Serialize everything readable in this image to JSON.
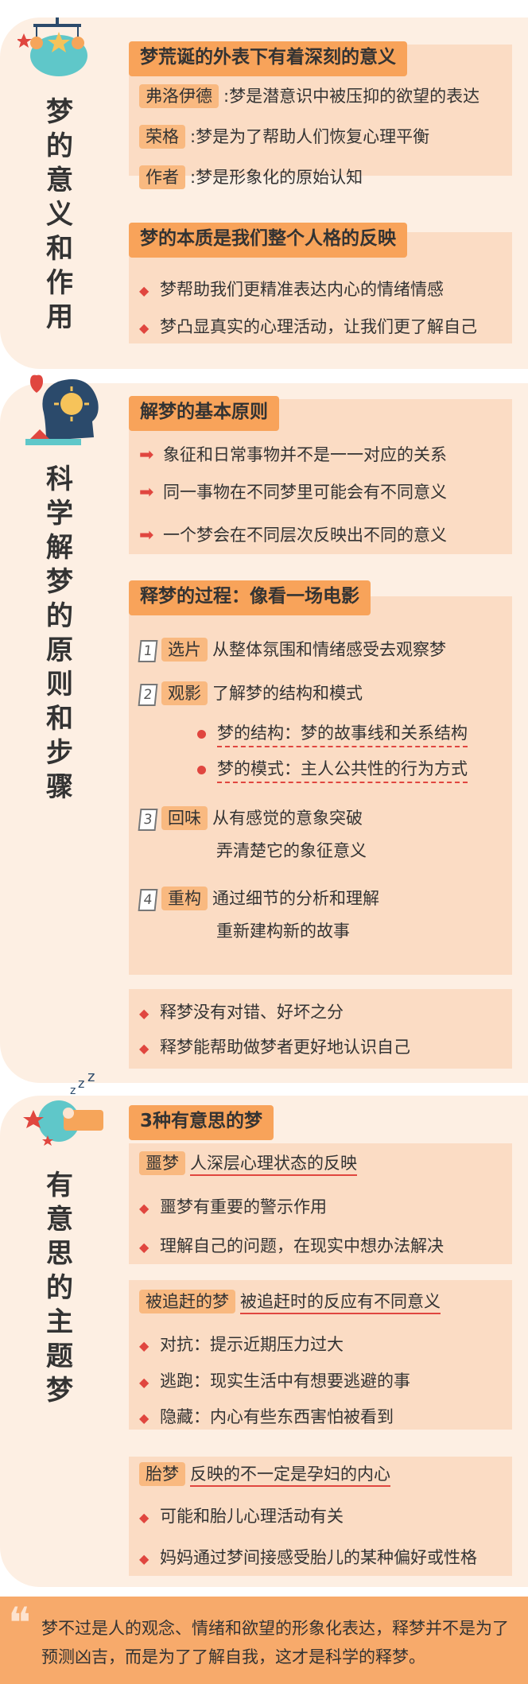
{
  "section1": {
    "title": "梦的意义和作用",
    "block1": {
      "heading": "梦荒诞的外表下有着深刻的意义",
      "rows": [
        {
          "tag": "弗洛伊德",
          "text": ":梦是潜意识中被压抑的欲望的表达"
        },
        {
          "tag": "荣格",
          "text": ":梦是为了帮助人们恢复心理平衡"
        },
        {
          "tag": "作者",
          "text": ":梦是形象化的原始认知"
        }
      ]
    },
    "block2": {
      "heading": "梦的本质是我们整个人格的反映",
      "items": [
        "梦帮助我们更精准表达内心的情绪情感",
        "梦凸显真实的心理活动，让我们更了解自己"
      ]
    }
  },
  "section2": {
    "title": "科学解梦的原则和步骤",
    "block1": {
      "heading": "解梦的基本原则",
      "items": [
        "象征和日常事物并不是一一对应的关系",
        "同一事物在不同梦里可能会有不同意义",
        "一个梦会在不同层次反映出不同的意义"
      ]
    },
    "block2": {
      "heading": "释梦的过程：像看一场电影",
      "steps": [
        {
          "num": "1",
          "label": "选片",
          "lines": [
            "从整体氛围和情绪感受去观察梦"
          ]
        },
        {
          "num": "2",
          "label": "观影",
          "lines": [
            "了解梦的结构和模式"
          ]
        },
        {
          "num": "3",
          "label": "回味",
          "lines": [
            "从有感觉的意象突破",
            "弄清楚它的象征意义"
          ]
        },
        {
          "num": "4",
          "label": "重构",
          "lines": [
            "通过细节的分析和理解",
            "重新建构新的故事"
          ]
        }
      ],
      "sub": [
        "梦的结构：梦的故事线和关系结构",
        "梦的模式：主人公共性的行为方式"
      ]
    },
    "block3": {
      "items": [
        "释梦没有对错、好坏之分",
        "释梦能帮助做梦者更好地认识自己"
      ]
    }
  },
  "section3": {
    "title": "有意思的主题梦",
    "heading": "3种有意思的梦",
    "dreams": [
      {
        "tag": "噩梦",
        "desc": "人深层心理状态的反映",
        "items": [
          "噩梦有重要的警示作用",
          "理解自己的问题，在现实中想办法解决"
        ]
      },
      {
        "tag": "被追赶的梦",
        "desc": "被追赶时的反应有不同意义",
        "items": [
          "对抗：提示近期压力过大",
          "逃跑：现实生活中有想要逃避的事",
          "隐藏：内心有些东西害怕被看到"
        ]
      },
      {
        "tag": "胎梦",
        "desc": "反映的不一定是孕妇的内心",
        "items": [
          "可能和胎儿心理活动有关",
          "妈妈通过梦间接感受胎儿的某种偏好或性格"
        ]
      }
    ]
  },
  "footer": {
    "quote_mark": "❝",
    "text": "梦不过是人的观念、情绪和欲望的形象化表达，释梦并不是为了预测凶吉，而是为了了解自我，这才是科学的释梦。"
  },
  "colors": {
    "accent": "#f8a35a",
    "panel": "#fbdcc4",
    "bg": "#fdefe3",
    "red": "#e0463f"
  },
  "icons": {
    "divider": "◆",
    "arrow": "➡"
  }
}
